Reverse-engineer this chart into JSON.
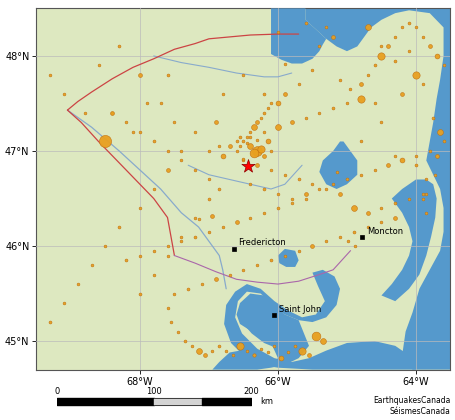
{
  "map_extent": [
    -69.5,
    -63.5,
    44.7,
    48.5
  ],
  "land_color": "#dde8c0",
  "water_color": "#5599cc",
  "grid_color": "#bbbbbb",
  "cities": [
    {
      "name": "Fredericton",
      "lon": -66.64,
      "lat": 45.965
    },
    {
      "name": "Moncton",
      "lon": -64.78,
      "lat": 46.09
    },
    {
      "name": "Saint John",
      "lon": -66.06,
      "lat": 45.27
    }
  ],
  "credit_text": "EarthquakesCanada\nSéismesCanada",
  "xticks": [
    -68,
    -66,
    -64
  ],
  "xtick_labels": [
    "68°W",
    "66°W",
    "64°W"
  ],
  "yticks": [
    45,
    46,
    47,
    48
  ],
  "ytick_labels": [
    "45°N",
    "46°N",
    "47°N",
    "48°N"
  ],
  "earthquakes": [
    {
      "lon": -69.3,
      "lat": 47.8,
      "mag": 2.3
    },
    {
      "lon": -69.1,
      "lat": 47.6,
      "mag": 2.5
    },
    {
      "lon": -68.8,
      "lat": 47.4,
      "mag": 2.2
    },
    {
      "lon": -68.5,
      "lat": 47.1,
      "mag": 4.5
    },
    {
      "lon": -68.6,
      "lat": 47.9,
      "mag": 2.4
    },
    {
      "lon": -68.3,
      "lat": 48.1,
      "mag": 2.6
    },
    {
      "lon": -68.0,
      "lat": 47.8,
      "mag": 2.8
    },
    {
      "lon": -67.9,
      "lat": 47.5,
      "mag": 2.3
    },
    {
      "lon": -68.1,
      "lat": 47.2,
      "mag": 2.5
    },
    {
      "lon": -68.4,
      "lat": 47.4,
      "mag": 2.2
    },
    {
      "lon": -67.7,
      "lat": 47.5,
      "mag": 2.4
    },
    {
      "lon": -67.6,
      "lat": 47.8,
      "mag": 2.6
    },
    {
      "lon": -67.5,
      "lat": 47.3,
      "mag": 2.3
    },
    {
      "lon": -67.4,
      "lat": 47.0,
      "mag": 2.5
    },
    {
      "lon": -67.6,
      "lat": 46.8,
      "mag": 2.8
    },
    {
      "lon": -67.8,
      "lat": 46.6,
      "mag": 2.4
    },
    {
      "lon": -68.0,
      "lat": 46.4,
      "mag": 2.2
    },
    {
      "lon": -68.3,
      "lat": 46.2,
      "mag": 2.6
    },
    {
      "lon": -68.5,
      "lat": 46.0,
      "mag": 2.3
    },
    {
      "lon": -68.7,
      "lat": 45.8,
      "mag": 2.5
    },
    {
      "lon": -68.9,
      "lat": 45.6,
      "mag": 2.2
    },
    {
      "lon": -69.1,
      "lat": 45.4,
      "mag": 2.4
    },
    {
      "lon": -69.3,
      "lat": 45.2,
      "mag": 2.6
    },
    {
      "lon": -67.2,
      "lat": 47.2,
      "mag": 2.3
    },
    {
      "lon": -67.0,
      "lat": 47.0,
      "mag": 2.5
    },
    {
      "lon": -66.9,
      "lat": 47.3,
      "mag": 2.8
    },
    {
      "lon": -66.8,
      "lat": 47.6,
      "mag": 2.4
    },
    {
      "lon": -66.5,
      "lat": 47.8,
      "mag": 2.2
    },
    {
      "lon": -66.2,
      "lat": 47.6,
      "mag": 2.6
    },
    {
      "lon": -66.0,
      "lat": 47.5,
      "mag": 3.0
    },
    {
      "lon": -65.9,
      "lat": 47.6,
      "mag": 2.8
    },
    {
      "lon": -65.7,
      "lat": 47.7,
      "mag": 2.5
    },
    {
      "lon": -65.5,
      "lat": 47.85,
      "mag": 2.3
    },
    {
      "lon": -65.9,
      "lat": 47.92,
      "mag": 2.2
    },
    {
      "lon": -65.4,
      "lat": 48.1,
      "mag": 2.5
    },
    {
      "lon": -65.2,
      "lat": 48.2,
      "mag": 2.8
    },
    {
      "lon": -64.7,
      "lat": 48.3,
      "mag": 3.2
    },
    {
      "lon": -64.5,
      "lat": 48.1,
      "mag": 2.4
    },
    {
      "lon": -64.3,
      "lat": 47.95,
      "mag": 2.6
    },
    {
      "lon": -64.1,
      "lat": 48.05,
      "mag": 2.3
    },
    {
      "lon": -64.0,
      "lat": 47.8,
      "mag": 3.5
    },
    {
      "lon": -63.9,
      "lat": 47.7,
      "mag": 2.2
    },
    {
      "lon": -64.2,
      "lat": 47.6,
      "mag": 2.8
    },
    {
      "lon": -64.6,
      "lat": 47.5,
      "mag": 2.5
    },
    {
      "lon": -63.75,
      "lat": 47.35,
      "mag": 2.6
    },
    {
      "lon": -63.65,
      "lat": 47.2,
      "mag": 3.2
    },
    {
      "lon": -63.7,
      "lat": 46.95,
      "mag": 2.8
    },
    {
      "lon": -63.72,
      "lat": 46.75,
      "mag": 2.4
    },
    {
      "lon": -63.85,
      "lat": 46.55,
      "mag": 2.5
    },
    {
      "lon": -63.85,
      "lat": 46.35,
      "mag": 2.3
    },
    {
      "lon": -64.5,
      "lat": 47.3,
      "mag": 2.3
    },
    {
      "lon": -64.8,
      "lat": 47.1,
      "mag": 2.2
    },
    {
      "lon": -64.3,
      "lat": 46.95,
      "mag": 2.4
    },
    {
      "lon": -64.0,
      "lat": 46.85,
      "mag": 2.6
    },
    {
      "lon": -63.85,
      "lat": 46.7,
      "mag": 2.3
    },
    {
      "lon": -63.9,
      "lat": 46.5,
      "mag": 2.5
    },
    {
      "lon": -64.4,
      "lat": 46.85,
      "mag": 2.8
    },
    {
      "lon": -64.2,
      "lat": 46.9,
      "mag": 3.0
    },
    {
      "lon": -64.0,
      "lat": 46.95,
      "mag": 2.4
    },
    {
      "lon": -63.8,
      "lat": 47.0,
      "mag": 2.2
    },
    {
      "lon": -63.6,
      "lat": 47.1,
      "mag": 2.6
    },
    {
      "lon": -64.9,
      "lat": 46.4,
      "mag": 3.2
    },
    {
      "lon": -64.7,
      "lat": 46.35,
      "mag": 2.8
    },
    {
      "lon": -64.5,
      "lat": 46.4,
      "mag": 2.4
    },
    {
      "lon": -64.3,
      "lat": 46.45,
      "mag": 2.6
    },
    {
      "lon": -64.1,
      "lat": 46.5,
      "mag": 2.3
    },
    {
      "lon": -63.9,
      "lat": 46.55,
      "mag": 2.5
    },
    {
      "lon": -64.88,
      "lat": 46.0,
      "mag": 2.5
    },
    {
      "lon": -64.98,
      "lat": 46.05,
      "mag": 2.3
    },
    {
      "lon": -64.8,
      "lat": 46.75,
      "mag": 2.3
    },
    {
      "lon": -64.6,
      "lat": 46.8,
      "mag": 2.5
    },
    {
      "lon": -65.1,
      "lat": 46.55,
      "mag": 2.8
    },
    {
      "lon": -65.3,
      "lat": 46.6,
      "mag": 2.5
    },
    {
      "lon": -65.5,
      "lat": 46.65,
      "mag": 2.3
    },
    {
      "lon": -65.7,
      "lat": 46.7,
      "mag": 2.6
    },
    {
      "lon": -65.9,
      "lat": 46.75,
      "mag": 2.2
    },
    {
      "lon": -66.1,
      "lat": 46.8,
      "mag": 2.4
    },
    {
      "lon": -66.3,
      "lat": 46.85,
      "mag": 2.8
    },
    {
      "lon": -66.5,
      "lat": 46.9,
      "mag": 2.5
    },
    {
      "lon": -65.6,
      "lat": 46.5,
      "mag": 2.2
    },
    {
      "lon": -65.8,
      "lat": 46.45,
      "mag": 2.4
    },
    {
      "lon": -66.0,
      "lat": 46.4,
      "mag": 2.6
    },
    {
      "lon": -66.2,
      "lat": 46.35,
      "mag": 2.3
    },
    {
      "lon": -66.4,
      "lat": 46.3,
      "mag": 2.5
    },
    {
      "lon": -66.6,
      "lat": 46.25,
      "mag": 2.8
    },
    {
      "lon": -66.8,
      "lat": 46.2,
      "mag": 2.4
    },
    {
      "lon": -67.0,
      "lat": 46.15,
      "mag": 2.2
    },
    {
      "lon": -67.2,
      "lat": 46.1,
      "mag": 2.6
    },
    {
      "lon": -67.4,
      "lat": 46.05,
      "mag": 2.3
    },
    {
      "lon": -67.6,
      "lat": 46.0,
      "mag": 2.5
    },
    {
      "lon": -67.8,
      "lat": 45.95,
      "mag": 2.2
    },
    {
      "lon": -68.0,
      "lat": 45.9,
      "mag": 2.4
    },
    {
      "lon": -66.85,
      "lat": 47.05,
      "mag": 2.4
    },
    {
      "lon": -66.6,
      "lat": 47.1,
      "mag": 2.6
    },
    {
      "lon": -66.4,
      "lat": 47.15,
      "mag": 2.3
    },
    {
      "lon": -66.2,
      "lat": 47.2,
      "mag": 2.5
    },
    {
      "lon": -66.0,
      "lat": 47.25,
      "mag": 3.2
    },
    {
      "lon": -65.8,
      "lat": 47.3,
      "mag": 2.8
    },
    {
      "lon": -65.6,
      "lat": 47.35,
      "mag": 2.4
    },
    {
      "lon": -65.4,
      "lat": 47.4,
      "mag": 2.2
    },
    {
      "lon": -65.2,
      "lat": 47.45,
      "mag": 2.6
    },
    {
      "lon": -65.0,
      "lat": 47.5,
      "mag": 2.3
    },
    {
      "lon": -64.8,
      "lat": 47.55,
      "mag": 3.5
    },
    {
      "lon": -66.3,
      "lat": 47.0,
      "mag": 4.0
    },
    {
      "lon": -66.35,
      "lat": 46.98,
      "mag": 3.8
    },
    {
      "lon": -66.25,
      "lat": 47.02,
      "mag": 3.5
    },
    {
      "lon": -66.4,
      "lat": 47.05,
      "mag": 3.2
    },
    {
      "lon": -66.2,
      "lat": 46.95,
      "mag": 2.8
    },
    {
      "lon": -66.15,
      "lat": 47.1,
      "mag": 3.0
    },
    {
      "lon": -66.45,
      "lat": 47.08,
      "mag": 2.5
    },
    {
      "lon": -66.3,
      "lat": 47.12,
      "mag": 2.3
    },
    {
      "lon": -66.5,
      "lat": 46.92,
      "mag": 2.4
    },
    {
      "lon": -66.55,
      "lat": 47.15,
      "mag": 2.6
    },
    {
      "lon": -66.1,
      "lat": 47.0,
      "mag": 2.2
    },
    {
      "lon": -66.6,
      "lat": 47.0,
      "mag": 2.5
    },
    {
      "lon": -66.7,
      "lat": 47.05,
      "mag": 2.8
    },
    {
      "lon": -66.8,
      "lat": 46.95,
      "mag": 3.0
    },
    {
      "lon": -66.35,
      "lat": 47.25,
      "mag": 3.2
    },
    {
      "lon": -66.4,
      "lat": 47.2,
      "mag": 2.5
    },
    {
      "lon": -66.45,
      "lat": 47.15,
      "mag": 2.3
    },
    {
      "lon": -66.5,
      "lat": 47.1,
      "mag": 2.6
    },
    {
      "lon": -66.55,
      "lat": 47.05,
      "mag": 2.4
    },
    {
      "lon": -66.3,
      "lat": 47.3,
      "mag": 2.8
    },
    {
      "lon": -66.25,
      "lat": 47.35,
      "mag": 2.4
    },
    {
      "lon": -66.2,
      "lat": 47.4,
      "mag": 2.6
    },
    {
      "lon": -66.15,
      "lat": 47.45,
      "mag": 2.3
    },
    {
      "lon": -66.1,
      "lat": 47.5,
      "mag": 2.5
    },
    {
      "lon": -65.6,
      "lat": 48.35,
      "mag": 2.6
    },
    {
      "lon": -65.3,
      "lat": 48.3,
      "mag": 2.4
    },
    {
      "lon": -66.0,
      "lat": 48.25,
      "mag": 2.2
    },
    {
      "lon": -65.1,
      "lat": 47.75,
      "mag": 2.5
    },
    {
      "lon": -64.95,
      "lat": 47.65,
      "mag": 2.3
    },
    {
      "lon": -64.8,
      "lat": 47.7,
      "mag": 2.8
    },
    {
      "lon": -64.7,
      "lat": 47.8,
      "mag": 2.4
    },
    {
      "lon": -64.6,
      "lat": 47.9,
      "mag": 2.6
    },
    {
      "lon": -64.5,
      "lat": 48.0,
      "mag": 3.5
    },
    {
      "lon": -64.4,
      "lat": 48.1,
      "mag": 2.8
    },
    {
      "lon": -64.3,
      "lat": 48.2,
      "mag": 2.4
    },
    {
      "lon": -64.2,
      "lat": 48.3,
      "mag": 2.2
    },
    {
      "lon": -64.1,
      "lat": 48.35,
      "mag": 2.6
    },
    {
      "lon": -64.0,
      "lat": 48.3,
      "mag": 2.3
    },
    {
      "lon": -63.9,
      "lat": 48.2,
      "mag": 2.5
    },
    {
      "lon": -63.8,
      "lat": 48.1,
      "mag": 2.8
    },
    {
      "lon": -63.7,
      "lat": 48.0,
      "mag": 3.0
    },
    {
      "lon": -63.6,
      "lat": 47.9,
      "mag": 2.4
    },
    {
      "lon": -66.85,
      "lat": 46.6,
      "mag": 2.6
    },
    {
      "lon": -67.0,
      "lat": 46.7,
      "mag": 2.3
    },
    {
      "lon": -67.2,
      "lat": 46.8,
      "mag": 2.5
    },
    {
      "lon": -67.4,
      "lat": 46.9,
      "mag": 2.2
    },
    {
      "lon": -67.6,
      "lat": 47.0,
      "mag": 2.4
    },
    {
      "lon": -67.8,
      "lat": 47.1,
      "mag": 2.6
    },
    {
      "lon": -68.0,
      "lat": 47.2,
      "mag": 2.3
    },
    {
      "lon": -68.2,
      "lat": 47.3,
      "mag": 2.5
    },
    {
      "lon": -68.4,
      "lat": 47.4,
      "mag": 2.8
    },
    {
      "lon": -66.4,
      "lat": 46.65,
      "mag": 2.4
    },
    {
      "lon": -66.2,
      "lat": 46.6,
      "mag": 2.6
    },
    {
      "lon": -66.0,
      "lat": 46.55,
      "mag": 2.3
    },
    {
      "lon": -65.8,
      "lat": 46.5,
      "mag": 2.5
    },
    {
      "lon": -65.6,
      "lat": 46.55,
      "mag": 2.8
    },
    {
      "lon": -65.4,
      "lat": 46.6,
      "mag": 2.4
    },
    {
      "lon": -65.2,
      "lat": 46.65,
      "mag": 2.2
    },
    {
      "lon": -65.0,
      "lat": 46.7,
      "mag": 2.6
    },
    {
      "lon": -65.15,
      "lat": 46.78,
      "mag": 2.4
    },
    {
      "lon": -66.95,
      "lat": 46.32,
      "mag": 2.8
    },
    {
      "lon": -67.15,
      "lat": 46.28,
      "mag": 2.4
    },
    {
      "lon": -65.45,
      "lat": 45.05,
      "mag": 3.8
    },
    {
      "lon": -65.35,
      "lat": 45.0,
      "mag": 3.2
    },
    {
      "lon": -65.55,
      "lat": 44.85,
      "mag": 2.8
    },
    {
      "lon": -65.65,
      "lat": 44.9,
      "mag": 3.5
    },
    {
      "lon": -65.75,
      "lat": 44.95,
      "mag": 2.6
    },
    {
      "lon": -65.85,
      "lat": 44.88,
      "mag": 2.4
    },
    {
      "lon": -65.95,
      "lat": 44.82,
      "mag": 3.0
    },
    {
      "lon": -66.05,
      "lat": 44.95,
      "mag": 2.2
    },
    {
      "lon": -66.15,
      "lat": 44.88,
      "mag": 2.5
    },
    {
      "lon": -66.25,
      "lat": 44.92,
      "mag": 2.3
    },
    {
      "lon": -66.35,
      "lat": 44.85,
      "mag": 2.7
    },
    {
      "lon": -66.45,
      "lat": 44.9,
      "mag": 2.4
    },
    {
      "lon": -66.55,
      "lat": 44.95,
      "mag": 3.5
    },
    {
      "lon": -66.65,
      "lat": 44.85,
      "mag": 2.5
    },
    {
      "lon": -66.75,
      "lat": 44.9,
      "mag": 2.3
    },
    {
      "lon": -66.85,
      "lat": 44.95,
      "mag": 2.6
    },
    {
      "lon": -66.95,
      "lat": 44.9,
      "mag": 2.4
    },
    {
      "lon": -67.05,
      "lat": 44.85,
      "mag": 2.8
    },
    {
      "lon": -67.15,
      "lat": 44.9,
      "mag": 3.2
    },
    {
      "lon": -67.25,
      "lat": 44.95,
      "mag": 2.4
    },
    {
      "lon": -67.35,
      "lat": 45.0,
      "mag": 2.6
    },
    {
      "lon": -67.45,
      "lat": 45.1,
      "mag": 2.3
    },
    {
      "lon": -67.55,
      "lat": 45.2,
      "mag": 2.5
    },
    {
      "lon": -67.6,
      "lat": 45.35,
      "mag": 2.2
    },
    {
      "lon": -67.5,
      "lat": 45.5,
      "mag": 2.4
    },
    {
      "lon": -67.3,
      "lat": 45.55,
      "mag": 2.6
    },
    {
      "lon": -67.1,
      "lat": 45.6,
      "mag": 2.3
    },
    {
      "lon": -66.9,
      "lat": 45.65,
      "mag": 2.8
    },
    {
      "lon": -66.7,
      "lat": 45.7,
      "mag": 2.5
    },
    {
      "lon": -66.5,
      "lat": 45.75,
      "mag": 2.2
    },
    {
      "lon": -66.3,
      "lat": 45.8,
      "mag": 2.4
    },
    {
      "lon": -66.1,
      "lat": 45.85,
      "mag": 2.6
    },
    {
      "lon": -65.9,
      "lat": 45.9,
      "mag": 2.3
    },
    {
      "lon": -65.7,
      "lat": 45.95,
      "mag": 2.5
    },
    {
      "lon": -65.5,
      "lat": 46.0,
      "mag": 2.8
    },
    {
      "lon": -65.3,
      "lat": 46.05,
      "mag": 2.4
    },
    {
      "lon": -65.1,
      "lat": 46.1,
      "mag": 2.2
    },
    {
      "lon": -64.9,
      "lat": 46.15,
      "mag": 2.6
    },
    {
      "lon": -64.7,
      "lat": 46.2,
      "mag": 2.3
    },
    {
      "lon": -64.5,
      "lat": 46.25,
      "mag": 2.5
    },
    {
      "lon": -64.3,
      "lat": 46.3,
      "mag": 2.8
    },
    {
      "lon": -67.0,
      "lat": 46.5,
      "mag": 2.6
    },
    {
      "lon": -67.2,
      "lat": 46.3,
      "mag": 2.3
    },
    {
      "lon": -67.4,
      "lat": 46.1,
      "mag": 2.5
    },
    {
      "lon": -67.6,
      "lat": 45.9,
      "mag": 2.2
    },
    {
      "lon": -67.8,
      "lat": 45.7,
      "mag": 2.4
    },
    {
      "lon": -68.0,
      "lat": 45.5,
      "mag": 2.6
    },
    {
      "lon": -68.2,
      "lat": 45.85,
      "mag": 2.6
    }
  ],
  "star_event": {
    "lon": -66.44,
    "lat": 46.84,
    "size": 100,
    "color": "red"
  },
  "earthquake_color": "#e8a020",
  "earthquake_edge_color": "#c07010",
  "nb_qc_border_lons": [
    -69.05,
    -68.9,
    -68.7,
    -68.4,
    -68.1,
    -67.8,
    -67.5,
    -67.2,
    -67.0,
    -66.7,
    -66.4,
    -66.0,
    -65.7
  ],
  "nb_qc_border_lats": [
    47.43,
    47.52,
    47.62,
    47.76,
    47.88,
    47.97,
    48.07,
    48.13,
    48.18,
    48.2,
    48.22,
    48.23,
    48.23
  ],
  "nb_us_border_lons": [
    -69.05,
    -68.85,
    -68.6,
    -68.2,
    -67.8,
    -67.6,
    -67.5
  ],
  "nb_us_border_lats": [
    47.43,
    47.3,
    47.1,
    46.8,
    46.5,
    46.3,
    45.9
  ],
  "river_color": "#88aacc",
  "stj_river_lons": [
    -69.05,
    -68.7,
    -68.3,
    -68.0,
    -67.7,
    -67.4,
    -67.15,
    -67.0,
    -66.85,
    -66.8,
    -66.75
  ],
  "stj_river_lats": [
    47.43,
    47.25,
    47.0,
    46.8,
    46.6,
    46.35,
    46.2,
    46.05,
    45.9,
    45.75,
    45.55
  ],
  "mir_river_lons": [
    -67.3,
    -67.0,
    -66.7,
    -66.4,
    -66.1,
    -65.9,
    -65.65
  ],
  "mir_river_lats": [
    46.85,
    46.75,
    46.7,
    46.65,
    46.6,
    46.65,
    46.85
  ],
  "res_river_lons": [
    -67.8,
    -67.4,
    -67.0,
    -66.6,
    -66.2,
    -66.0,
    -65.8
  ],
  "res_river_lats": [
    48.0,
    47.93,
    47.88,
    47.82,
    47.78,
    47.78,
    47.82
  ],
  "ns_nb_border_lons": [
    -67.5,
    -67.2,
    -66.9,
    -66.6,
    -66.3,
    -66.0,
    -65.7,
    -65.4,
    -65.2,
    -64.95
  ],
  "ns_nb_border_lats": [
    45.9,
    45.82,
    45.73,
    45.65,
    45.62,
    45.6,
    45.63,
    45.7,
    45.75,
    45.95
  ],
  "grand_lake": [
    [
      -65.98,
      45.82
    ],
    [
      -65.88,
      45.78
    ],
    [
      -65.75,
      45.78
    ],
    [
      -65.7,
      45.85
    ],
    [
      -65.75,
      45.95
    ],
    [
      -65.9,
      45.97
    ],
    [
      -66.0,
      45.9
    ],
    [
      -65.98,
      45.82
    ]
  ],
  "passamaquoddy_lons": [
    -66.95,
    -66.75,
    -66.6,
    -66.5,
    -66.4,
    -66.3,
    -66.25,
    -66.3,
    -66.5,
    -66.7,
    -66.9,
    -66.95
  ],
  "passamaquoddy_lats": [
    44.7,
    44.7,
    44.75,
    44.82,
    44.88,
    44.95,
    45.08,
    45.18,
    45.15,
    45.0,
    44.85,
    44.7
  ]
}
